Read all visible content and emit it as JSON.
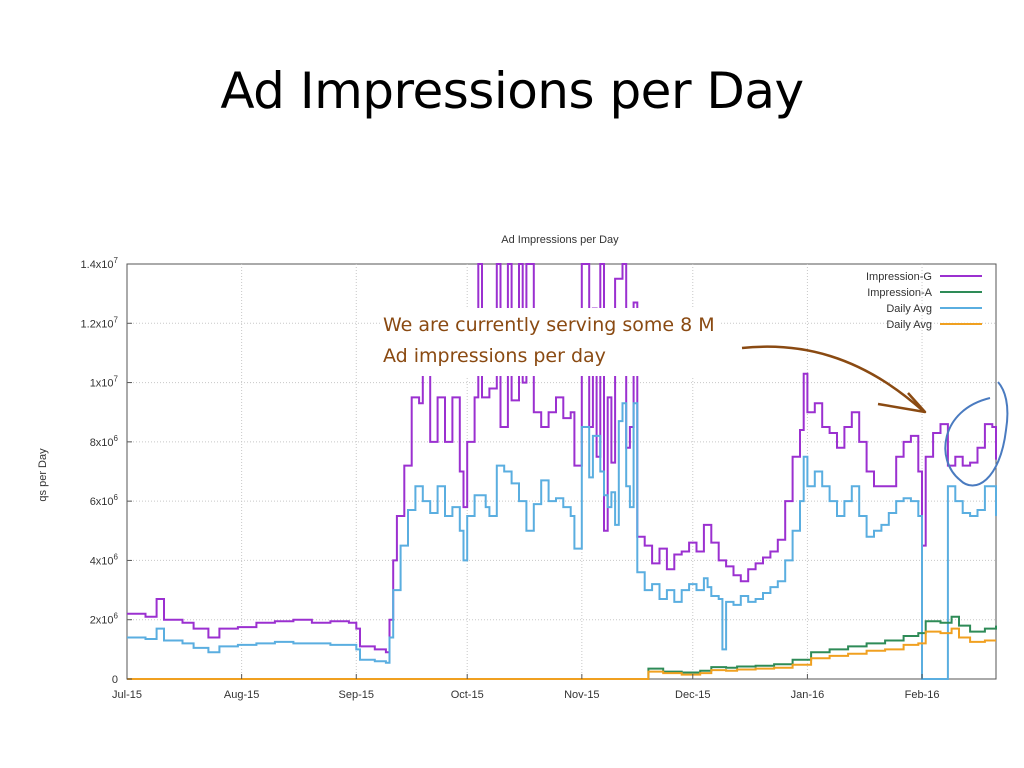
{
  "slide": {
    "title": "Ad Impressions per Day",
    "annotation_lines": [
      "We are currently serving some 8 M",
      "Ad impressions per day"
    ]
  },
  "chart_data": {
    "type": "line",
    "title": "Ad Impressions per Day",
    "xlabel": "",
    "ylabel": "qs per Day",
    "xlim": [
      0,
      235
    ],
    "ylim": [
      0,
      14000000
    ],
    "grid": true,
    "legend_position": "top-right",
    "x_ticks": [
      {
        "day": 0,
        "label": "Jul-15"
      },
      {
        "day": 31,
        "label": "Aug-15"
      },
      {
        "day": 62,
        "label": "Sep-15"
      },
      {
        "day": 92,
        "label": "Oct-15"
      },
      {
        "day": 123,
        "label": "Nov-15"
      },
      {
        "day": 153,
        "label": "Dec-15"
      },
      {
        "day": 184,
        "label": "Jan-16"
      },
      {
        "day": 215,
        "label": "Feb-16"
      }
    ],
    "y_ticks": [
      {
        "value": 0,
        "label": "0",
        "exp": ""
      },
      {
        "value": 2000000,
        "label": "2x10",
        "exp": "6"
      },
      {
        "value": 4000000,
        "label": "4x10",
        "exp": "6"
      },
      {
        "value": 6000000,
        "label": "6x10",
        "exp": "6"
      },
      {
        "value": 8000000,
        "label": "8x10",
        "exp": "6"
      },
      {
        "value": 10000000,
        "label": "1x10",
        "exp": "7"
      },
      {
        "value": 12000000,
        "label": "1.2x10",
        "exp": "7"
      },
      {
        "value": 14000000,
        "label": "1.4x10",
        "exp": "7"
      }
    ],
    "series": [
      {
        "name": "Impression-G",
        "color": "#9b30d0",
        "points": [
          [
            0,
            2200000
          ],
          [
            5,
            2100000
          ],
          [
            8,
            2700000
          ],
          [
            10,
            2000000
          ],
          [
            15,
            1900000
          ],
          [
            18,
            1700000
          ],
          [
            22,
            1400000
          ],
          [
            25,
            1700000
          ],
          [
            30,
            1750000
          ],
          [
            35,
            1900000
          ],
          [
            40,
            1950000
          ],
          [
            45,
            2000000
          ],
          [
            50,
            1900000
          ],
          [
            55,
            1950000
          ],
          [
            60,
            1900000
          ],
          [
            62,
            1700000
          ],
          [
            63,
            1100000
          ],
          [
            67,
            1000000
          ],
          [
            70,
            900000
          ],
          [
            71,
            2000000
          ],
          [
            72,
            4000000
          ],
          [
            73,
            5500000
          ],
          [
            75,
            7200000
          ],
          [
            77,
            9500000
          ],
          [
            79,
            9300000
          ],
          [
            80,
            10300000
          ],
          [
            82,
            8000000
          ],
          [
            84,
            9500000
          ],
          [
            86,
            8000000
          ],
          [
            88,
            9500000
          ],
          [
            90,
            7000000
          ],
          [
            91,
            5800000
          ],
          [
            92,
            8000000
          ],
          [
            94,
            9500000
          ],
          [
            95,
            14000000
          ],
          [
            96,
            9500000
          ],
          [
            98,
            9800000
          ],
          [
            100,
            14000000
          ],
          [
            101,
            8500000
          ],
          [
            103,
            14000000
          ],
          [
            104,
            9400000
          ],
          [
            106,
            14000000
          ],
          [
            107,
            10000000
          ],
          [
            108,
            14000000
          ],
          [
            110,
            9000000
          ],
          [
            112,
            8500000
          ],
          [
            114,
            9000000
          ],
          [
            116,
            9500000
          ],
          [
            118,
            8800000
          ],
          [
            120,
            9000000
          ],
          [
            121,
            7200000
          ],
          [
            123,
            14000000
          ],
          [
            125,
            8500000
          ],
          [
            126,
            12500000
          ],
          [
            127,
            7500000
          ],
          [
            128,
            14000000
          ],
          [
            129,
            5000000
          ],
          [
            130,
            9500000
          ],
          [
            131,
            7300000
          ],
          [
            132,
            13500000
          ],
          [
            134,
            14000000
          ],
          [
            135,
            7800000
          ],
          [
            136,
            8500000
          ],
          [
            137,
            12700000
          ],
          [
            138,
            4800000
          ],
          [
            140,
            4500000
          ],
          [
            142,
            3900000
          ],
          [
            144,
            4400000
          ],
          [
            146,
            3700000
          ],
          [
            148,
            4200000
          ],
          [
            150,
            4300000
          ],
          [
            152,
            4600000
          ],
          [
            154,
            4300000
          ],
          [
            156,
            5200000
          ],
          [
            158,
            4600000
          ],
          [
            160,
            4000000
          ],
          [
            162,
            3800000
          ],
          [
            164,
            3500000
          ],
          [
            166,
            3300000
          ],
          [
            168,
            3700000
          ],
          [
            170,
            3900000
          ],
          [
            172,
            4100000
          ],
          [
            174,
            4300000
          ],
          [
            176,
            4700000
          ],
          [
            178,
            6000000
          ],
          [
            180,
            7500000
          ],
          [
            182,
            8400000
          ],
          [
            183,
            10300000
          ],
          [
            184,
            9000000
          ],
          [
            186,
            9300000
          ],
          [
            188,
            8500000
          ],
          [
            190,
            8300000
          ],
          [
            192,
            7800000
          ],
          [
            194,
            8500000
          ],
          [
            196,
            9000000
          ],
          [
            198,
            8000000
          ],
          [
            200,
            7000000
          ],
          [
            202,
            6500000
          ],
          [
            204,
            6500000
          ],
          [
            206,
            6500000
          ],
          [
            208,
            7500000
          ],
          [
            210,
            8000000
          ],
          [
            212,
            8200000
          ],
          [
            214,
            7000000
          ],
          [
            215,
            4500000
          ],
          [
            216,
            7500000
          ],
          [
            218,
            8300000
          ],
          [
            220,
            8600000
          ],
          [
            222,
            7200000
          ],
          [
            224,
            7500000
          ],
          [
            226,
            7200000
          ],
          [
            228,
            7300000
          ],
          [
            230,
            7800000
          ],
          [
            232,
            8600000
          ],
          [
            234,
            8500000
          ],
          [
            235,
            7400000
          ]
        ]
      },
      {
        "name": "Impression-A",
        "color": "#2e8b57",
        "points": [
          [
            0,
            0
          ],
          [
            140,
            0
          ],
          [
            141,
            350000
          ],
          [
            145,
            250000
          ],
          [
            150,
            220000
          ],
          [
            155,
            280000
          ],
          [
            158,
            400000
          ],
          [
            162,
            380000
          ],
          [
            165,
            420000
          ],
          [
            170,
            450000
          ],
          [
            175,
            500000
          ],
          [
            180,
            650000
          ],
          [
            185,
            900000
          ],
          [
            190,
            1000000
          ],
          [
            195,
            1100000
          ],
          [
            200,
            1200000
          ],
          [
            205,
            1300000
          ],
          [
            210,
            1450000
          ],
          [
            214,
            1550000
          ],
          [
            216,
            1950000
          ],
          [
            220,
            1900000
          ],
          [
            223,
            2100000
          ],
          [
            225,
            1800000
          ],
          [
            228,
            1600000
          ],
          [
            232,
            1700000
          ],
          [
            235,
            1800000
          ]
        ]
      },
      {
        "name": "Daily Avg",
        "color": "#5aaee0",
        "points": [
          [
            0,
            1400000
          ],
          [
            5,
            1350000
          ],
          [
            8,
            1700000
          ],
          [
            10,
            1300000
          ],
          [
            15,
            1200000
          ],
          [
            18,
            1050000
          ],
          [
            22,
            900000
          ],
          [
            25,
            1100000
          ],
          [
            30,
            1150000
          ],
          [
            35,
            1200000
          ],
          [
            40,
            1250000
          ],
          [
            45,
            1200000
          ],
          [
            50,
            1200000
          ],
          [
            55,
            1150000
          ],
          [
            60,
            1150000
          ],
          [
            62,
            1000000
          ],
          [
            63,
            650000
          ],
          [
            67,
            600000
          ],
          [
            70,
            550000
          ],
          [
            71,
            1400000
          ],
          [
            72,
            3000000
          ],
          [
            74,
            4500000
          ],
          [
            76,
            5700000
          ],
          [
            78,
            6500000
          ],
          [
            80,
            6000000
          ],
          [
            82,
            5600000
          ],
          [
            84,
            6500000
          ],
          [
            86,
            5500000
          ],
          [
            88,
            5800000
          ],
          [
            90,
            5000000
          ],
          [
            91,
            4000000
          ],
          [
            92,
            5500000
          ],
          [
            94,
            6200000
          ],
          [
            95,
            6200000
          ],
          [
            97,
            5800000
          ],
          [
            98,
            5500000
          ],
          [
            100,
            7200000
          ],
          [
            102,
            7000000
          ],
          [
            104,
            6600000
          ],
          [
            106,
            6000000
          ],
          [
            108,
            5000000
          ],
          [
            110,
            5900000
          ],
          [
            112,
            6700000
          ],
          [
            114,
            6000000
          ],
          [
            116,
            6100000
          ],
          [
            118,
            5800000
          ],
          [
            120,
            5500000
          ],
          [
            121,
            4400000
          ],
          [
            123,
            8500000
          ],
          [
            125,
            6800000
          ],
          [
            126,
            8200000
          ],
          [
            128,
            7000000
          ],
          [
            129,
            6200000
          ],
          [
            130,
            5800000
          ],
          [
            131,
            6300000
          ],
          [
            132,
            5200000
          ],
          [
            133,
            8700000
          ],
          [
            134,
            9300000
          ],
          [
            135,
            6500000
          ],
          [
            136,
            5800000
          ],
          [
            137,
            9300000
          ],
          [
            138,
            3600000
          ],
          [
            140,
            3000000
          ],
          [
            142,
            3200000
          ],
          [
            144,
            2700000
          ],
          [
            146,
            3000000
          ],
          [
            148,
            2600000
          ],
          [
            150,
            3000000
          ],
          [
            152,
            3200000
          ],
          [
            154,
            3000000
          ],
          [
            156,
            3400000
          ],
          [
            157,
            3100000
          ],
          [
            158,
            2800000
          ],
          [
            160,
            2700000
          ],
          [
            161,
            1000000
          ],
          [
            162,
            2600000
          ],
          [
            164,
            2500000
          ],
          [
            166,
            2800000
          ],
          [
            168,
            2600000
          ],
          [
            170,
            2700000
          ],
          [
            172,
            2900000
          ],
          [
            174,
            3100000
          ],
          [
            176,
            3300000
          ],
          [
            178,
            4000000
          ],
          [
            180,
            5000000
          ],
          [
            182,
            6000000
          ],
          [
            183,
            7500000
          ],
          [
            184,
            6500000
          ],
          [
            186,
            7000000
          ],
          [
            188,
            6500000
          ],
          [
            190,
            6000000
          ],
          [
            192,
            5500000
          ],
          [
            194,
            6000000
          ],
          [
            196,
            6500000
          ],
          [
            198,
            5500000
          ],
          [
            200,
            4800000
          ],
          [
            202,
            5000000
          ],
          [
            204,
            5200000
          ],
          [
            206,
            5600000
          ],
          [
            208,
            6000000
          ],
          [
            210,
            6100000
          ],
          [
            212,
            6000000
          ],
          [
            214,
            5500000
          ],
          [
            215,
            0
          ],
          [
            221,
            0
          ],
          [
            222,
            6500000
          ],
          [
            224,
            6000000
          ],
          [
            226,
            5600000
          ],
          [
            228,
            5500000
          ],
          [
            230,
            5700000
          ],
          [
            232,
            6500000
          ],
          [
            235,
            5500000
          ]
        ]
      },
      {
        "name": "Daily Avg",
        "color": "#f0a020",
        "points": [
          [
            0,
            0
          ],
          [
            140,
            0
          ],
          [
            141,
            250000
          ],
          [
            145,
            200000
          ],
          [
            150,
            150000
          ],
          [
            155,
            200000
          ],
          [
            158,
            300000
          ],
          [
            162,
            280000
          ],
          [
            165,
            320000
          ],
          [
            170,
            350000
          ],
          [
            175,
            380000
          ],
          [
            180,
            480000
          ],
          [
            185,
            700000
          ],
          [
            190,
            780000
          ],
          [
            195,
            850000
          ],
          [
            200,
            950000
          ],
          [
            205,
            1000000
          ],
          [
            210,
            1150000
          ],
          [
            214,
            1200000
          ],
          [
            216,
            1600000
          ],
          [
            220,
            1550000
          ],
          [
            223,
            1700000
          ],
          [
            225,
            1400000
          ],
          [
            228,
            1250000
          ],
          [
            232,
            1300000
          ],
          [
            235,
            1300000
          ]
        ]
      }
    ]
  }
}
